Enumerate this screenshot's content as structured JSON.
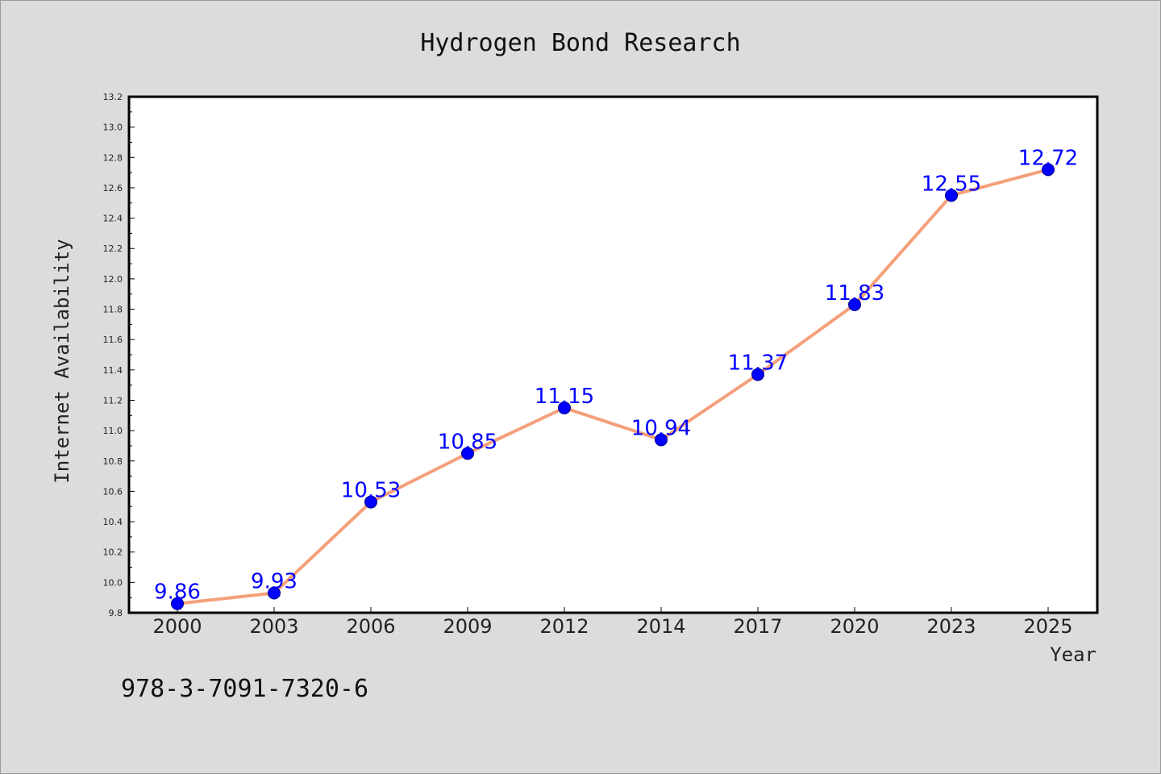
{
  "chart_data": {
    "type": "line",
    "title": "Hydrogen Bond Research",
    "xlabel": "Year",
    "ylabel": "Internet Availability",
    "categories": [
      "2000",
      "2003",
      "2006",
      "2009",
      "2012",
      "2014",
      "2017",
      "2020",
      "2023",
      "2025"
    ],
    "series": [
      {
        "values": [
          9.86,
          9.93,
          10.53,
          10.85,
          11.15,
          10.94,
          11.37,
          11.83,
          12.55,
          12.72
        ],
        "data_labels": [
          "9.86",
          "9.93",
          "10.53",
          "10.85",
          "11.15",
          "10.94",
          "11.37",
          "11.83",
          "12.55",
          "12.72"
        ],
        "line_color": "#f4a07a",
        "marker_color": "#0000ff"
      }
    ],
    "ylim": [
      9.8,
      13.2
    ],
    "yticks": [
      "9.8",
      "10.0",
      "10.2",
      "10.4",
      "10.6",
      "10.8",
      "11.0",
      "11.2",
      "11.4",
      "11.6",
      "11.8",
      "12.0",
      "12.2",
      "12.4",
      "12.6",
      "12.8",
      "13.0",
      "13.2"
    ],
    "grid": false,
    "legend": "none"
  },
  "footer": {
    "isbn": "978-3-7091-7320-6"
  },
  "colors": {
    "background": "#dcdcdc",
    "plot_background": "#ffffff",
    "text": "#111111"
  }
}
